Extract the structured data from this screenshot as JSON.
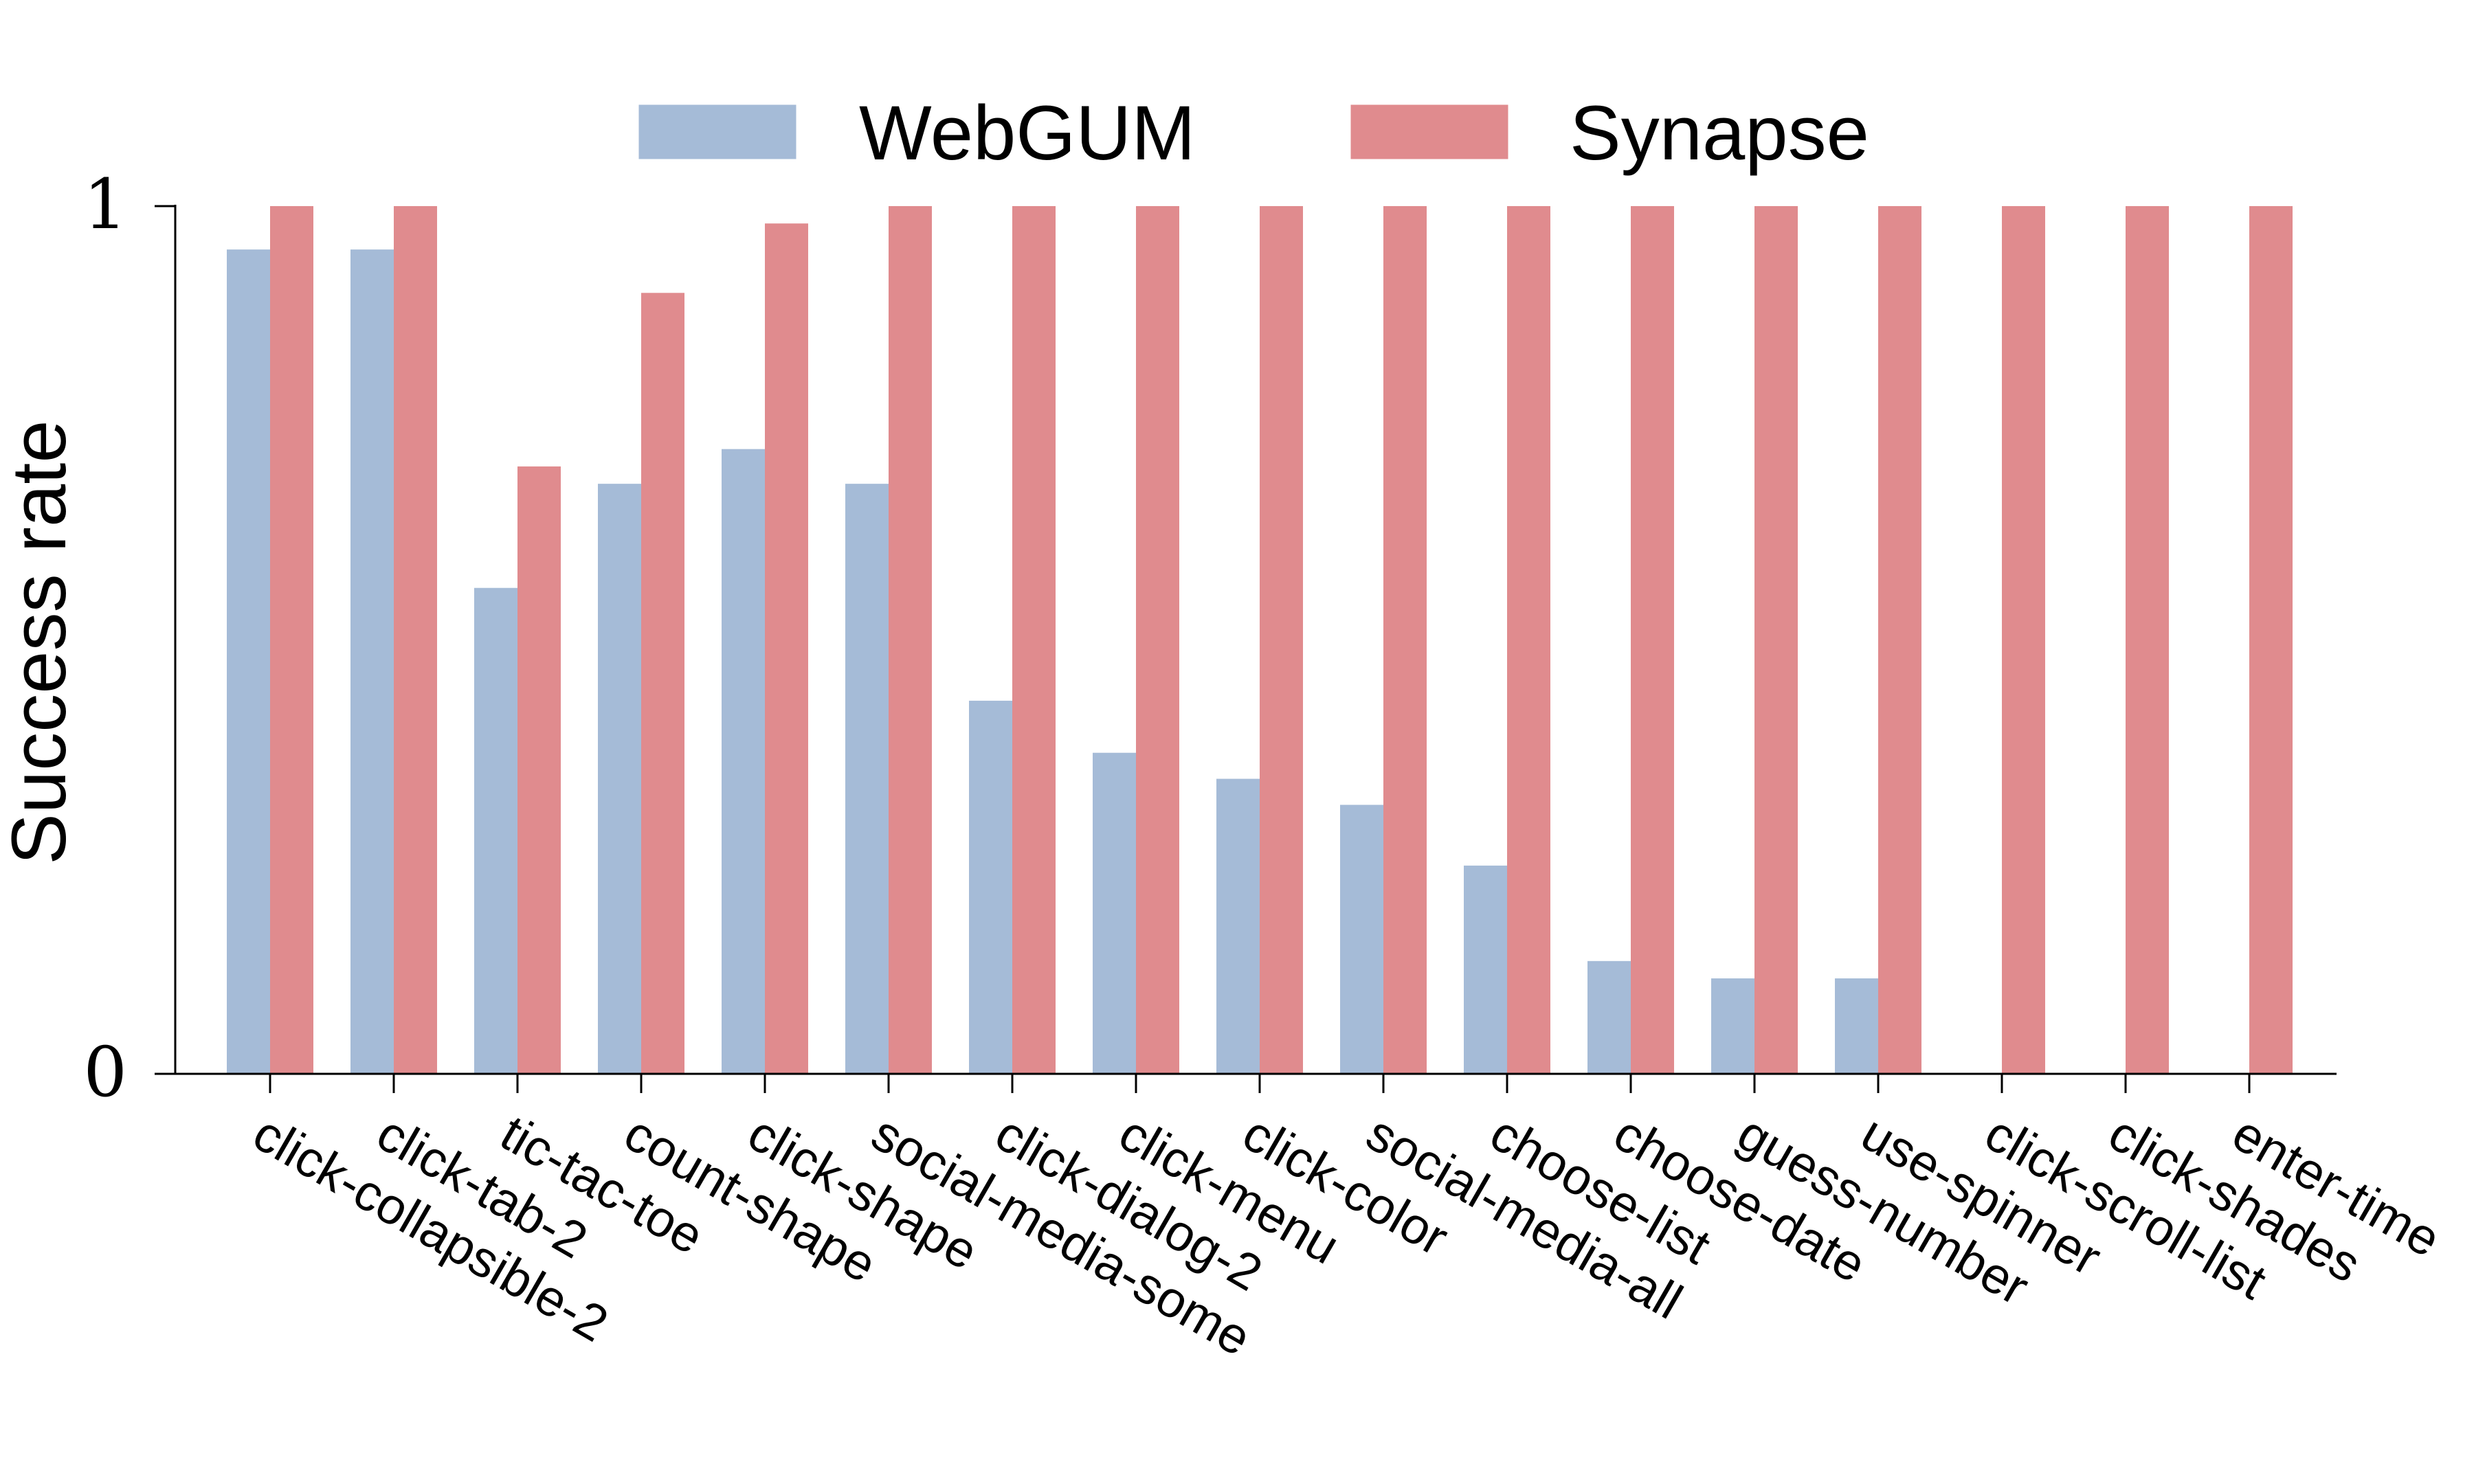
{
  "chart_data": {
    "type": "bar",
    "title": "",
    "xlabel": "",
    "ylabel": "Success rate",
    "ylim": [
      0,
      1
    ],
    "yticks": [
      "0",
      "1"
    ],
    "grid": false,
    "legend_position": "top-center",
    "categories": [
      "click-collapsible-2",
      "click-tab-2",
      "tic-tac-toe",
      "count-shape",
      "click-shape",
      "social-media-some",
      "click-dialog-2",
      "click-menu",
      "click-color",
      "social-media-all",
      "choose-list",
      "choose-date",
      "guess-number",
      "use-spinner",
      "click-scroll-list",
      "click-shades",
      "enter-time"
    ],
    "series": [
      {
        "name": "WebGUM",
        "color": "#a5bbd7",
        "values": [
          0.95,
          0.95,
          0.56,
          0.68,
          0.72,
          0.68,
          0.43,
          0.37,
          0.34,
          0.31,
          0.24,
          0.13,
          0.11,
          0.11,
          0.0,
          0.0,
          0.0
        ]
      },
      {
        "name": "Synapse",
        "color": "#e08b8e",
        "values": [
          1.0,
          1.0,
          0.7,
          0.9,
          0.98,
          1.0,
          1.0,
          1.0,
          1.0,
          1.0,
          1.0,
          1.0,
          1.0,
          1.0,
          1.0,
          1.0,
          1.0
        ]
      }
    ]
  }
}
